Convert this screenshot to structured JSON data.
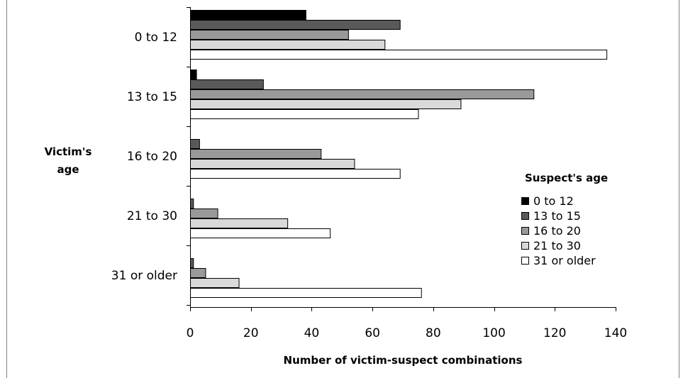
{
  "chart_data": {
    "type": "bar",
    "orientation": "horizontal",
    "categories": [
      "0 to 12",
      "13 to 15",
      "16 to 20",
      "21 to 30",
      "31 or older"
    ],
    "series": [
      {
        "name": "0 to 12",
        "color": "#000000",
        "values": [
          38,
          2,
          0,
          0,
          0
        ]
      },
      {
        "name": "13 to 15",
        "color": "#595959",
        "values": [
          69,
          24,
          3,
          1,
          1
        ]
      },
      {
        "name": "16 to 20",
        "color": "#999999",
        "values": [
          52,
          113,
          43,
          9,
          5
        ]
      },
      {
        "name": "21 to 30",
        "color": "#d9d9d9",
        "values": [
          64,
          89,
          54,
          32,
          16
        ]
      },
      {
        "name": "31 or older",
        "color": "#ffffff",
        "values": [
          137,
          75,
          69,
          46,
          76
        ]
      }
    ],
    "xlim": [
      0,
      140
    ],
    "xticks": [
      "0",
      "20",
      "40",
      "60",
      "80",
      "100",
      "120",
      "140"
    ],
    "xlabel": "Number of victim-suspect combinations",
    "ylabel_lines": [
      "Victim's",
      "age"
    ],
    "legend_title": "Suspect's age",
    "legend_placement": "right",
    "grid": false
  }
}
